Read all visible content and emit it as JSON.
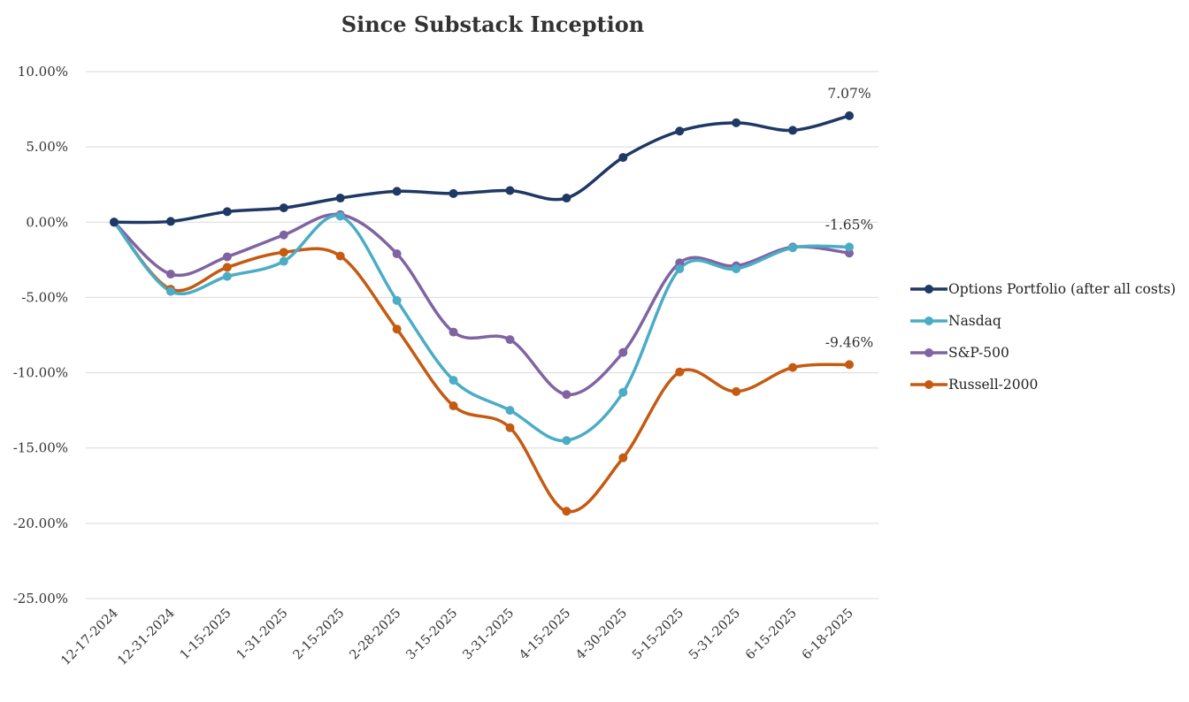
{
  "chart_data": {
    "type": "line",
    "title": "Since Substack Inception",
    "xlabel": "",
    "ylabel": "",
    "categories": [
      "12-17-2024",
      "12-31-2024",
      "1-15-2025",
      "1-31-2025",
      "2-15-2025",
      "2-28-2025",
      "3-15-2025",
      "3-31-2025",
      "4-15-2025",
      "4-30-2025",
      "5-15-2025",
      "5-31-2025",
      "6-15-2025",
      "6-18-2025"
    ],
    "ylim": [
      -25,
      10
    ],
    "y_ticks": [
      10,
      5,
      0,
      -5,
      -10,
      -15,
      -20,
      -25
    ],
    "y_tick_labels": [
      "10.00%",
      "5.00%",
      "0.00%",
      "-5.00%",
      "-10.00%",
      "-15.00%",
      "-20.00%",
      "-25.00%"
    ],
    "grid": true,
    "legend_position": "right",
    "smooth": true,
    "series": [
      {
        "name": "Options Portfolio (after all costs)",
        "color": "#1f3864",
        "values": [
          0.0,
          0.05,
          0.7,
          0.95,
          1.6,
          2.05,
          1.9,
          2.1,
          1.6,
          4.3,
          6.05,
          6.6,
          6.1,
          7.07
        ],
        "end_label": "7.07%"
      },
      {
        "name": "Nasdaq",
        "color": "#4bacc6",
        "values": [
          0.0,
          -4.6,
          -3.6,
          -2.6,
          0.4,
          -5.2,
          -10.5,
          -12.5,
          -14.5,
          -11.3,
          -3.1,
          -3.1,
          -1.7,
          -1.65
        ],
        "end_label": "-1.65%"
      },
      {
        "name": "S&P-500",
        "color": "#8064a2",
        "values": [
          0.0,
          -3.45,
          -2.3,
          -0.85,
          0.5,
          -2.1,
          -7.3,
          -7.8,
          -11.45,
          -8.65,
          -2.7,
          -2.9,
          -1.65,
          -2.05
        ],
        "end_label": ""
      },
      {
        "name": "Russell-2000",
        "color": "#c55a11",
        "values": [
          0.0,
          -4.45,
          -3.0,
          -2.0,
          -2.25,
          -7.1,
          -12.2,
          -13.65,
          -19.2,
          -15.65,
          -9.95,
          -11.25,
          -9.65,
          -9.46
        ],
        "end_label": "-9.46%"
      }
    ]
  }
}
